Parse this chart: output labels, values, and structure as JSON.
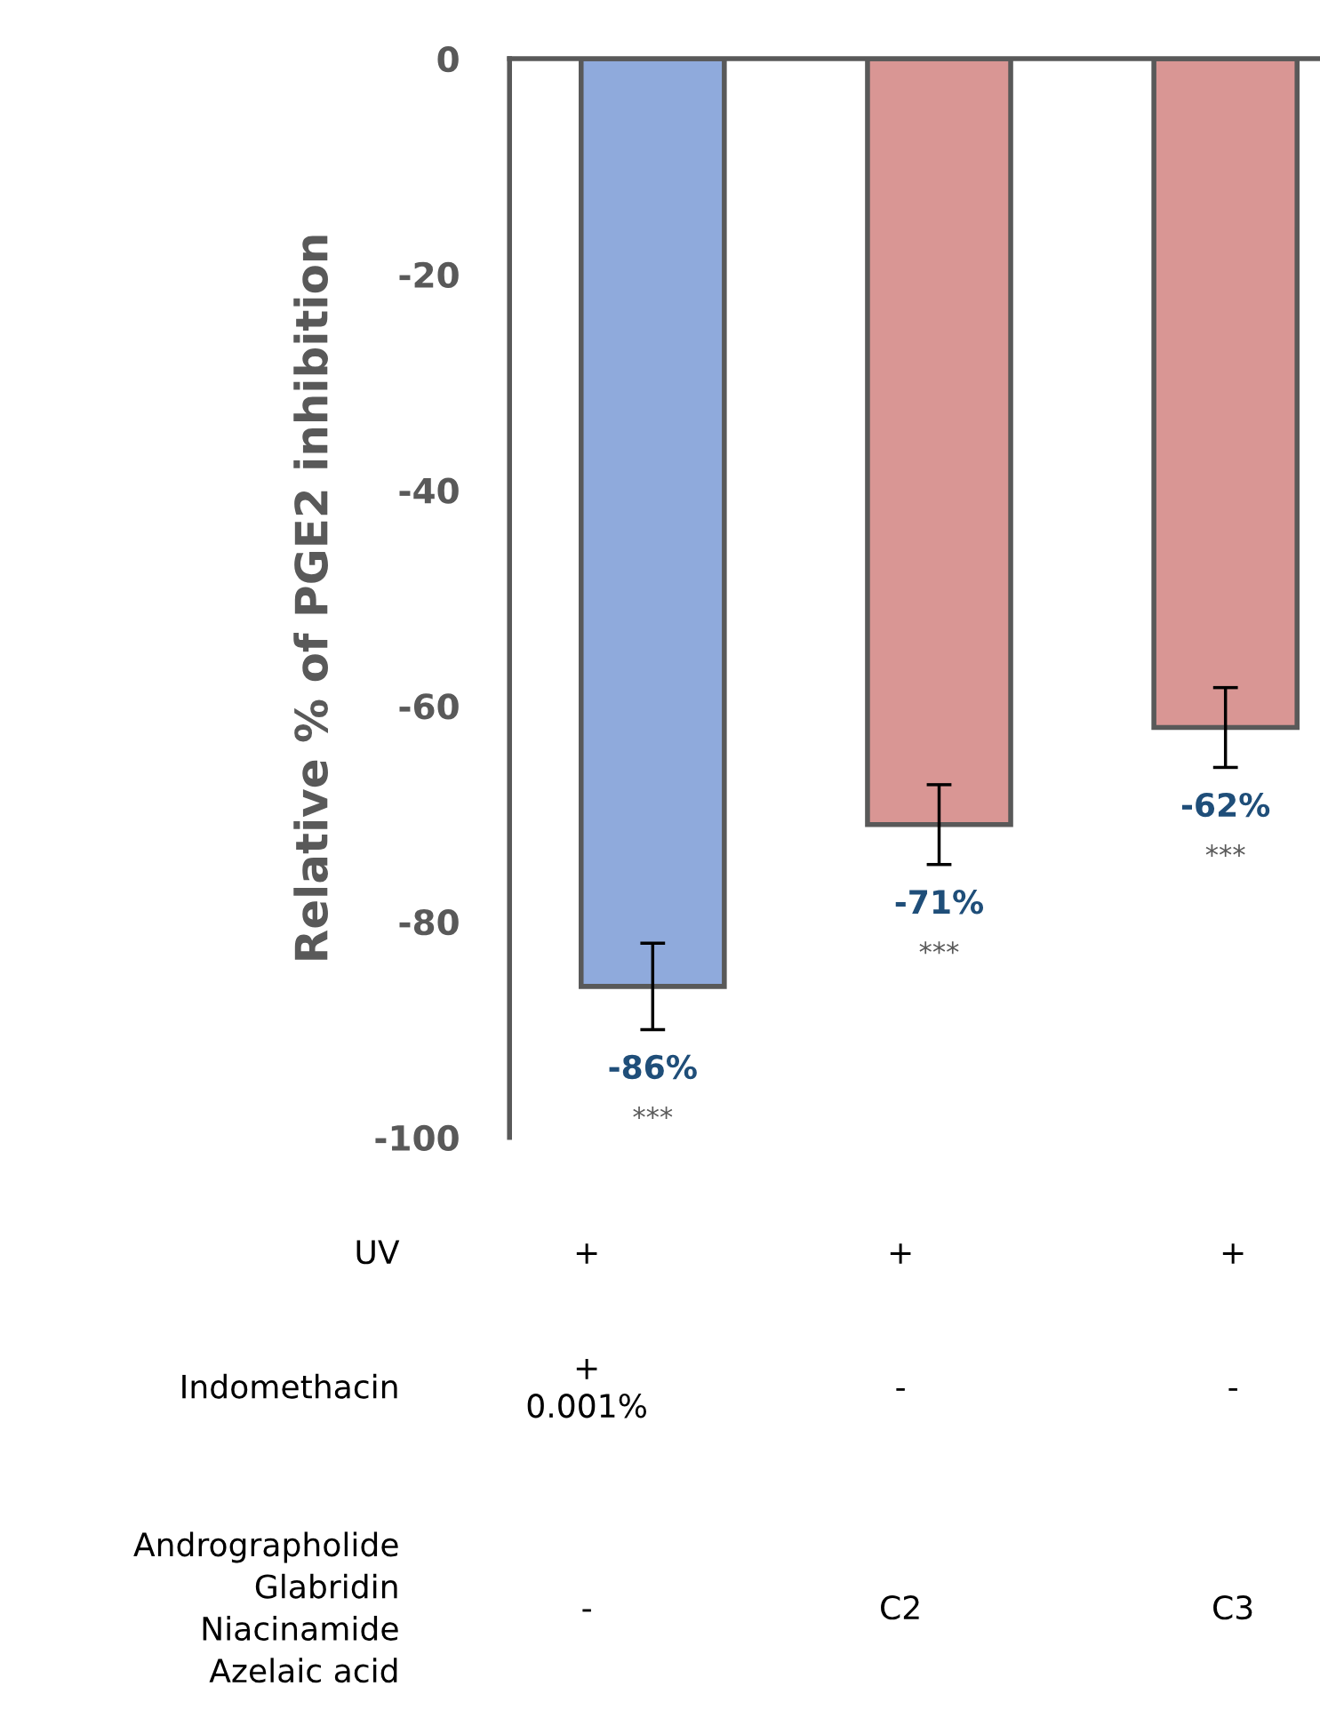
{
  "chart_data": {
    "type": "bar",
    "ylabel": "Relative % of PGE2 inhibition",
    "categories": [
      null,
      null,
      null
    ],
    "values": [
      -86,
      -71,
      -62
    ],
    "colors": [
      "#8faadc",
      "#d99694",
      "#d99694"
    ],
    "errors": [
      4,
      3.7,
      3.7
    ],
    "value_labels": [
      "-86%",
      "-71%",
      "-62%"
    ],
    "ylim": [
      -100,
      0
    ],
    "yticks": [
      {
        "value": -100,
        "label": "-100"
      },
      {
        "value": -80,
        "label": "-80"
      },
      {
        "value": -60,
        "label": "-60"
      },
      {
        "value": -40,
        "label": "-40"
      },
      {
        "value": -20,
        "label": "-20"
      },
      0
    ],
    "grid": false,
    "annotations": [
      "***",
      "***",
      "***",
      "UV",
      "+",
      "+",
      "+",
      "Indomethacin",
      "+\n0.001%",
      "-",
      "-",
      "Andrographolide\nGlabridin\nNiacinamide\nAzelaic acid",
      "-",
      "C2",
      "C3"
    ]
  }
}
